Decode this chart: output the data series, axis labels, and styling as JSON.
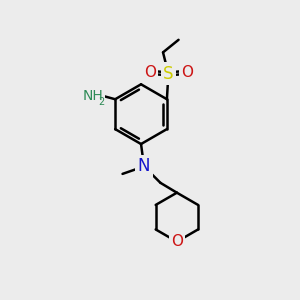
{
  "bg_color": "#ececec",
  "bond_color": "#000000",
  "bond_width": 1.8,
  "atom_colors": {
    "N": "#1414cc",
    "O": "#cc1414",
    "S": "#cccc00",
    "NH": "#2e8b57",
    "C": "#000000"
  },
  "font_size": 10,
  "font_size_sub": 7
}
